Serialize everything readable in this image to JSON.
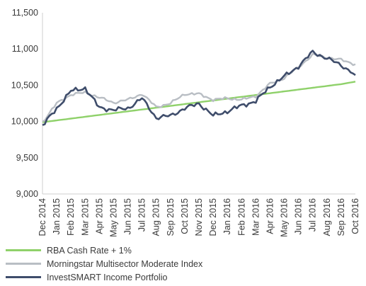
{
  "chart_data": {
    "type": "line",
    "y_ticks": [
      "11,500",
      "11,000",
      "10,500",
      "10,000",
      "9,500",
      "9,000"
    ],
    "y_tick_values": [
      11500,
      11000,
      10500,
      10000,
      9500,
      9000
    ],
    "ylim": [
      9000,
      11500
    ],
    "grid": false,
    "legend_position": "bottom",
    "categories": [
      "Dec 2014",
      "Jan 2015",
      "Feb 2015",
      "Mar 2015",
      "Apr 2015",
      "May 2015",
      "Jun 2015",
      "Jul 2015",
      "Aug 2015",
      "Sep 2015",
      "Oct 2015",
      "Nov 2015",
      "Dec 2015",
      "Jan 2016",
      "Feb 2016",
      "Mar 2016",
      "Apr 2016",
      "May 2016",
      "Jun 2016",
      "Jul 2016",
      "Aug 2016",
      "Sep 2016",
      "Oct 2016"
    ],
    "series": [
      {
        "name": "RBA Cash Rate + 1%",
        "color": "#8fd16a",
        "values": [
          9990,
          10015,
          10040,
          10065,
          10090,
          10115,
          10140,
          10165,
          10190,
          10215,
          10240,
          10265,
          10290,
          10315,
          10340,
          10365,
          10390,
          10415,
          10440,
          10465,
          10490,
          10515,
          10550
        ]
      },
      {
        "name": "Morningstar Multisector Moderate Index",
        "color": "#b9bec4",
        "values": [
          9990,
          10250,
          10370,
          10400,
          10330,
          10260,
          10300,
          10380,
          10200,
          10250,
          10380,
          10380,
          10300,
          10320,
          10300,
          10350,
          10520,
          10600,
          10750,
          10920,
          10880,
          10850,
          10790
        ]
      },
      {
        "name": "InvestSMART Income Portfolio",
        "color": "#3f4d6b",
        "values": [
          9940,
          10180,
          10420,
          10460,
          10190,
          10160,
          10180,
          10320,
          10050,
          10080,
          10180,
          10250,
          10080,
          10140,
          10220,
          10280,
          10480,
          10620,
          10760,
          10960,
          10870,
          10780,
          10640
        ]
      }
    ]
  }
}
